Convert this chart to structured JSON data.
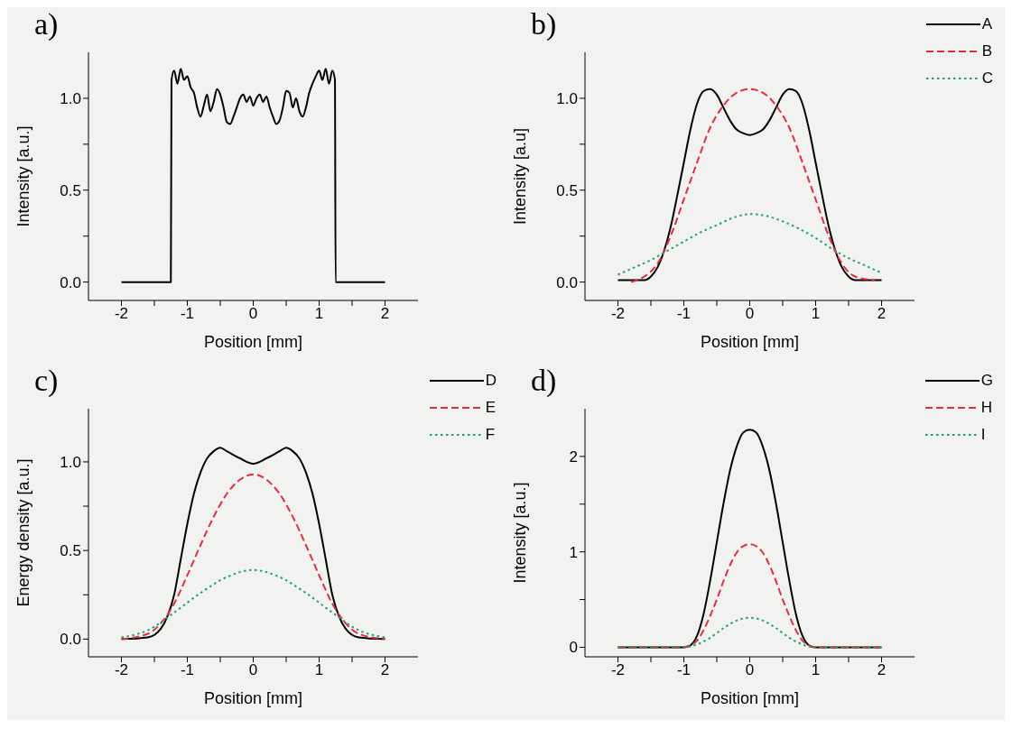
{
  "chart_data": [
    {
      "type": "line",
      "title": "a)",
      "xlabel": "Position [mm]",
      "ylabel": "Intensity [a.u.]",
      "xlim": [
        -2.5,
        2.5
      ],
      "xticks": [
        -2,
        {
          "value": -1.5,
          "label": null
        },
        -1,
        {
          "value": -0.5,
          "label": null
        },
        0,
        {
          "value": 0.5,
          "label": null
        },
        1,
        {
          "value": 1.5,
          "label": null
        },
        2
      ],
      "ylim": [
        -0.1,
        1.25
      ],
      "yticks": [
        {
          "value": 0,
          "label": "0.0"
        },
        {
          "value": 0.25,
          "label": null
        },
        0.5,
        {
          "value": 0.75,
          "label": null
        },
        {
          "value": 1,
          "label": "1.0"
        }
      ],
      "series": [
        {
          "color": "#000000",
          "line_style": "solid",
          "x": [
            -2,
            -1.25,
            -1.24,
            -1.2,
            -1.15,
            -1.1,
            -1.05,
            -1.0,
            -0.95,
            -0.9,
            -0.85,
            -0.8,
            -0.75,
            -0.7,
            -0.65,
            -0.6,
            -0.55,
            -0.5,
            -0.45,
            -0.4,
            -0.35,
            -0.3,
            -0.25,
            -0.2,
            -0.15,
            -0.1,
            -0.05,
            0,
            0.05,
            0.1,
            0.15,
            0.2,
            0.25,
            0.3,
            0.35,
            0.4,
            0.45,
            0.5,
            0.55,
            0.6,
            0.65,
            0.7,
            0.75,
            0.8,
            0.85,
            0.9,
            0.95,
            1.0,
            1.05,
            1.1,
            1.15,
            1.2,
            1.24,
            1.25,
            2
          ],
          "values": [
            0,
            0,
            1.1,
            1.15,
            1.08,
            1.16,
            1.1,
            1.12,
            1.06,
            1.03,
            0.95,
            0.9,
            0.96,
            1.02,
            0.93,
            0.98,
            1.05,
            1.02,
            0.95,
            0.87,
            0.86,
            0.9,
            0.95,
            1.0,
            1.02,
            0.98,
            1.01,
            0.96,
            1.0,
            1.02,
            0.98,
            1.01,
            0.95,
            0.9,
            0.86,
            0.88,
            0.95,
            1.04,
            1.03,
            0.95,
            1.0,
            0.93,
            0.9,
            0.95,
            1.03,
            1.08,
            1.12,
            1.15,
            1.1,
            1.16,
            1.08,
            1.15,
            1.1,
            0,
            0
          ]
        }
      ]
    },
    {
      "type": "line",
      "title": "b)",
      "xlabel": "Position [mm]",
      "ylabel": "Intensity [a.u]",
      "legend": "top right",
      "xlim": [
        -2.5,
        2.5
      ],
      "xticks": [
        -2,
        {
          "value": -1.5,
          "label": null
        },
        -1,
        {
          "value": -0.5,
          "label": null
        },
        0,
        {
          "value": 0.5,
          "label": null
        },
        1,
        {
          "value": 1.5,
          "label": null
        },
        2
      ],
      "ylim": [
        -0.1,
        1.25
      ],
      "yticks": [
        {
          "value": 0,
          "label": "0.0"
        },
        {
          "value": 0.25,
          "label": null
        },
        0.5,
        {
          "value": 0.75,
          "label": null
        },
        {
          "value": 1,
          "label": "1.0"
        }
      ],
      "series": [
        {
          "name": "A",
          "color": "#000000",
          "line_style": "solid",
          "x": [
            -2,
            -1.8,
            -1.6,
            -1.5,
            -1.4,
            -1.3,
            -1.2,
            -1.1,
            -1.0,
            -0.9,
            -0.8,
            -0.7,
            -0.6,
            -0.5,
            -0.4,
            -0.3,
            -0.2,
            -0.1,
            0,
            0.1,
            0.2,
            0.3,
            0.4,
            0.5,
            0.6,
            0.7,
            0.8,
            0.9,
            1.0,
            1.1,
            1.2,
            1.3,
            1.4,
            1.5,
            1.6,
            1.8,
            2
          ],
          "values": [
            0.01,
            0.01,
            0.01,
            0.03,
            0.08,
            0.17,
            0.3,
            0.47,
            0.65,
            0.83,
            0.97,
            1.04,
            1.05,
            1.02,
            0.95,
            0.88,
            0.83,
            0.81,
            0.8,
            0.81,
            0.83,
            0.88,
            0.95,
            1.02,
            1.05,
            1.04,
            0.97,
            0.83,
            0.65,
            0.47,
            0.3,
            0.17,
            0.08,
            0.03,
            0.01,
            0.01,
            0.01
          ]
        },
        {
          "name": "B",
          "color": "#e03040",
          "line_style": "dashed",
          "x": [
            -1.8,
            -1.6,
            -1.4,
            -1.2,
            -1.0,
            -0.8,
            -0.6,
            -0.4,
            -0.2,
            0,
            0.2,
            0.4,
            0.6,
            0.8,
            1.0,
            1.2,
            1.4,
            1.6,
            1.9
          ],
          "values": [
            0.0,
            0.03,
            0.1,
            0.25,
            0.45,
            0.65,
            0.84,
            0.96,
            1.03,
            1.05,
            1.03,
            0.96,
            0.84,
            0.65,
            0.45,
            0.25,
            0.1,
            0.03,
            0.01
          ]
        },
        {
          "name": "C",
          "color": "#20a070",
          "line_style": "dotted",
          "x": [
            -2,
            -1.75,
            -1.5,
            -1.25,
            -1.0,
            -0.75,
            -0.5,
            -0.25,
            0,
            0.25,
            0.5,
            0.75,
            1.0,
            1.25,
            1.5,
            1.75,
            2
          ],
          "values": [
            0.04,
            0.08,
            0.12,
            0.17,
            0.22,
            0.27,
            0.31,
            0.35,
            0.37,
            0.36,
            0.33,
            0.29,
            0.24,
            0.18,
            0.13,
            0.09,
            0.05
          ]
        }
      ]
    },
    {
      "type": "line",
      "title": "c)",
      "xlabel": "Position [mm]",
      "ylabel": "Energy density [a.u.]",
      "legend": "top right",
      "xlim": [
        -2.5,
        2.5
      ],
      "xticks": [
        -2,
        {
          "value": -1.5,
          "label": null
        },
        -1,
        {
          "value": -0.5,
          "label": null
        },
        0,
        {
          "value": 0.5,
          "label": null
        },
        1,
        {
          "value": 1.5,
          "label": null
        },
        2
      ],
      "ylim": [
        -0.1,
        1.3
      ],
      "yticks": [
        {
          "value": 0,
          "label": "0.0"
        },
        {
          "value": 0.25,
          "label": null
        },
        0.5,
        {
          "value": 0.75,
          "label": null
        },
        {
          "value": 1,
          "label": "1.0"
        }
      ],
      "series": [
        {
          "name": "D",
          "color": "#000000",
          "line_style": "solid",
          "x": [
            -2,
            -1.6,
            -1.4,
            -1.3,
            -1.2,
            -1.1,
            -1.0,
            -0.9,
            -0.8,
            -0.7,
            -0.6,
            -0.5,
            -0.4,
            -0.2,
            0,
            0.2,
            0.4,
            0.5,
            0.6,
            0.7,
            0.8,
            0.9,
            1.0,
            1.1,
            1.2,
            1.3,
            1.4,
            1.6,
            2
          ],
          "values": [
            0,
            0.01,
            0.06,
            0.13,
            0.25,
            0.45,
            0.65,
            0.82,
            0.94,
            1.02,
            1.06,
            1.08,
            1.06,
            1.02,
            0.99,
            1.02,
            1.06,
            1.08,
            1.06,
            1.02,
            0.94,
            0.82,
            0.65,
            0.45,
            0.25,
            0.13,
            0.06,
            0.01,
            0
          ]
        },
        {
          "name": "E",
          "color": "#e03040",
          "line_style": "dashed",
          "x": [
            -2,
            -1.6,
            -1.4,
            -1.2,
            -1.0,
            -0.8,
            -0.6,
            -0.4,
            -0.2,
            0,
            0.2,
            0.4,
            0.6,
            0.8,
            1.0,
            1.2,
            1.4,
            1.6,
            2
          ],
          "values": [
            0,
            0.03,
            0.09,
            0.2,
            0.36,
            0.53,
            0.69,
            0.82,
            0.9,
            0.93,
            0.9,
            0.82,
            0.69,
            0.53,
            0.36,
            0.2,
            0.09,
            0.03,
            0
          ]
        },
        {
          "name": "F",
          "color": "#20a070",
          "line_style": "dotted",
          "x": [
            -2,
            -1.6,
            -1.2,
            -0.8,
            -0.4,
            0,
            0.4,
            0.8,
            1.2,
            1.6,
            2
          ],
          "values": [
            0.01,
            0.05,
            0.15,
            0.26,
            0.35,
            0.39,
            0.35,
            0.26,
            0.15,
            0.05,
            0.01
          ]
        }
      ]
    },
    {
      "type": "line",
      "title": "d)",
      "xlabel": "Position [mm]",
      "ylabel": "Intensity [a.u.]",
      "legend": "top right",
      "xlim": [
        -2.5,
        2.5
      ],
      "xticks": [
        -2,
        {
          "value": -1.5,
          "label": null
        },
        -1,
        {
          "value": -0.5,
          "label": null
        },
        0,
        {
          "value": 0.5,
          "label": null
        },
        1,
        {
          "value": 1.5,
          "label": null
        },
        2
      ],
      "ylim": [
        -0.1,
        2.5
      ],
      "yticks": [
        0,
        {
          "value": 0.5,
          "label": null
        },
        1,
        {
          "value": 1.5,
          "label": null
        },
        2
      ],
      "series": [
        {
          "name": "G",
          "color": "#000000",
          "line_style": "solid",
          "x": [
            -2,
            -1,
            -0.9,
            -0.8,
            -0.7,
            -0.6,
            -0.5,
            -0.4,
            -0.3,
            -0.2,
            -0.1,
            0,
            0.1,
            0.2,
            0.3,
            0.4,
            0.5,
            0.6,
            0.7,
            0.8,
            0.9,
            1,
            2
          ],
          "values": [
            0,
            0,
            0.02,
            0.12,
            0.35,
            0.7,
            1.1,
            1.5,
            1.85,
            2.1,
            2.25,
            2.28,
            2.25,
            2.1,
            1.85,
            1.5,
            1.1,
            0.7,
            0.35,
            0.12,
            0.02,
            0,
            0
          ]
        },
        {
          "name": "H",
          "color": "#e03040",
          "line_style": "dashed",
          "x": [
            -2,
            -1,
            -0.9,
            -0.8,
            -0.7,
            -0.6,
            -0.5,
            -0.4,
            -0.3,
            -0.2,
            -0.1,
            0,
            0.1,
            0.2,
            0.3,
            0.4,
            0.5,
            0.6,
            0.7,
            0.8,
            0.9,
            1,
            2
          ],
          "values": [
            0,
            0,
            0.02,
            0.07,
            0.18,
            0.33,
            0.5,
            0.69,
            0.86,
            0.99,
            1.06,
            1.08,
            1.06,
            0.99,
            0.86,
            0.69,
            0.5,
            0.33,
            0.18,
            0.07,
            0.02,
            0,
            0
          ]
        },
        {
          "name": "I",
          "color": "#20a070",
          "line_style": "dotted",
          "x": [
            -2,
            -1,
            -0.8,
            -0.6,
            -0.4,
            -0.2,
            0,
            0.2,
            0.4,
            0.6,
            0.8,
            1,
            2
          ],
          "values": [
            0,
            0,
            0.03,
            0.1,
            0.2,
            0.28,
            0.31,
            0.28,
            0.2,
            0.1,
            0.03,
            0,
            0
          ]
        }
      ]
    }
  ]
}
